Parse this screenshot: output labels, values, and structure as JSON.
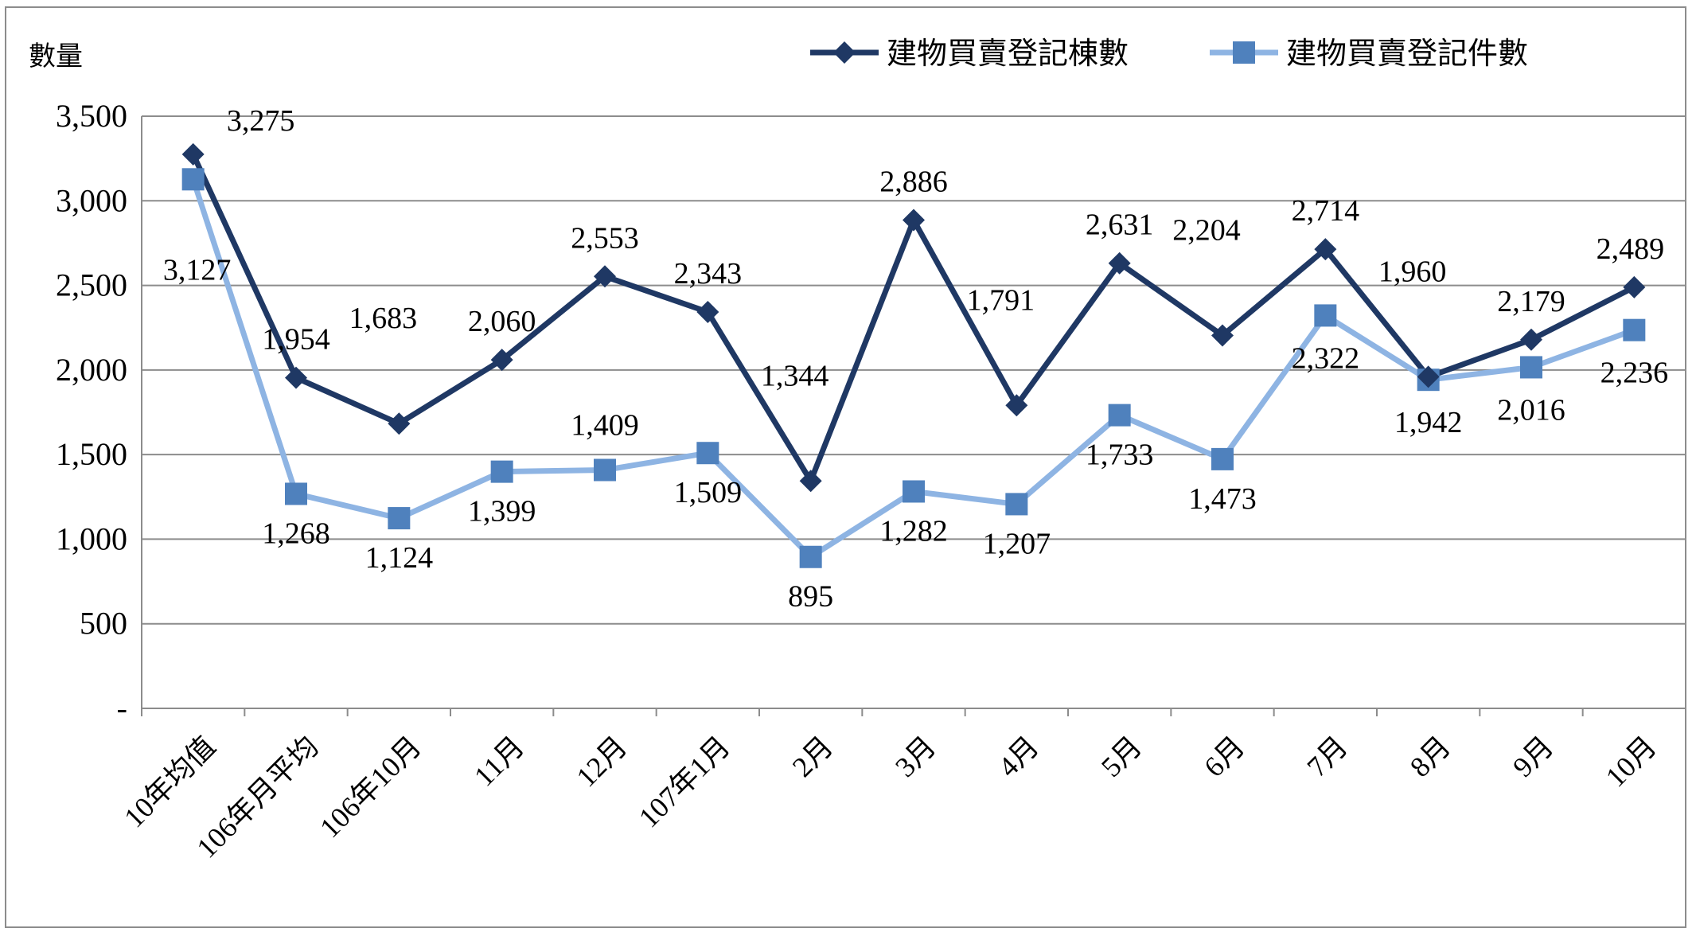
{
  "chart_data": {
    "type": "line",
    "ylabel": "數量",
    "ylim": [
      0,
      3500
    ],
    "yticks": [
      {
        "value": 0,
        "label": "-"
      },
      {
        "value": 500,
        "label": "500"
      },
      {
        "value": 1000,
        "label": "1,000"
      },
      {
        "value": 1500,
        "label": "1,500"
      },
      {
        "value": 2000,
        "label": "2,000"
      },
      {
        "value": 2500,
        "label": "2,500"
      },
      {
        "value": 3000,
        "label": "3,000"
      },
      {
        "value": 3500,
        "label": "3,500"
      }
    ],
    "grid": true,
    "legend_position": "top-right",
    "categories": [
      "10年均值",
      "106年月平均",
      "106年10月",
      "11月",
      "12月",
      "107年1月",
      "2月",
      "3月",
      "4月",
      "5月",
      "6月",
      "7月",
      "8月",
      "9月",
      "10月"
    ],
    "series": [
      {
        "name": "建物買賣登記棟數",
        "color": "#1f3864",
        "marker": "diamond",
        "values": [
          3275,
          1954,
          1683,
          2060,
          2553,
          2343,
          1344,
          2886,
          1791,
          2631,
          2204,
          2714,
          1960,
          2179,
          2489
        ],
        "labels": [
          "3,275",
          "1,954",
          "1,683",
          "2,060",
          "2,553",
          "2,343",
          "1,344",
          "2,886",
          "1,791",
          "2,631",
          "2,204",
          "2,714",
          "1,960",
          "2,179",
          "2,489"
        ]
      },
      {
        "name": "建物買賣登記件數",
        "color": "#8eb4e3",
        "marker_color": "#4f81bd",
        "marker": "square",
        "values": [
          3127,
          1268,
          1124,
          1399,
          1409,
          1509,
          895,
          1282,
          1207,
          1733,
          1473,
          2322,
          1942,
          2016,
          2236
        ],
        "labels": [
          "3,127",
          "1,268",
          "1,124",
          "1,399",
          "1,409",
          "1,509",
          "895",
          "1,282",
          "1,207",
          "1,733",
          "1,473",
          "2,322",
          "1,942",
          "2,016",
          "2,236"
        ]
      }
    ]
  }
}
